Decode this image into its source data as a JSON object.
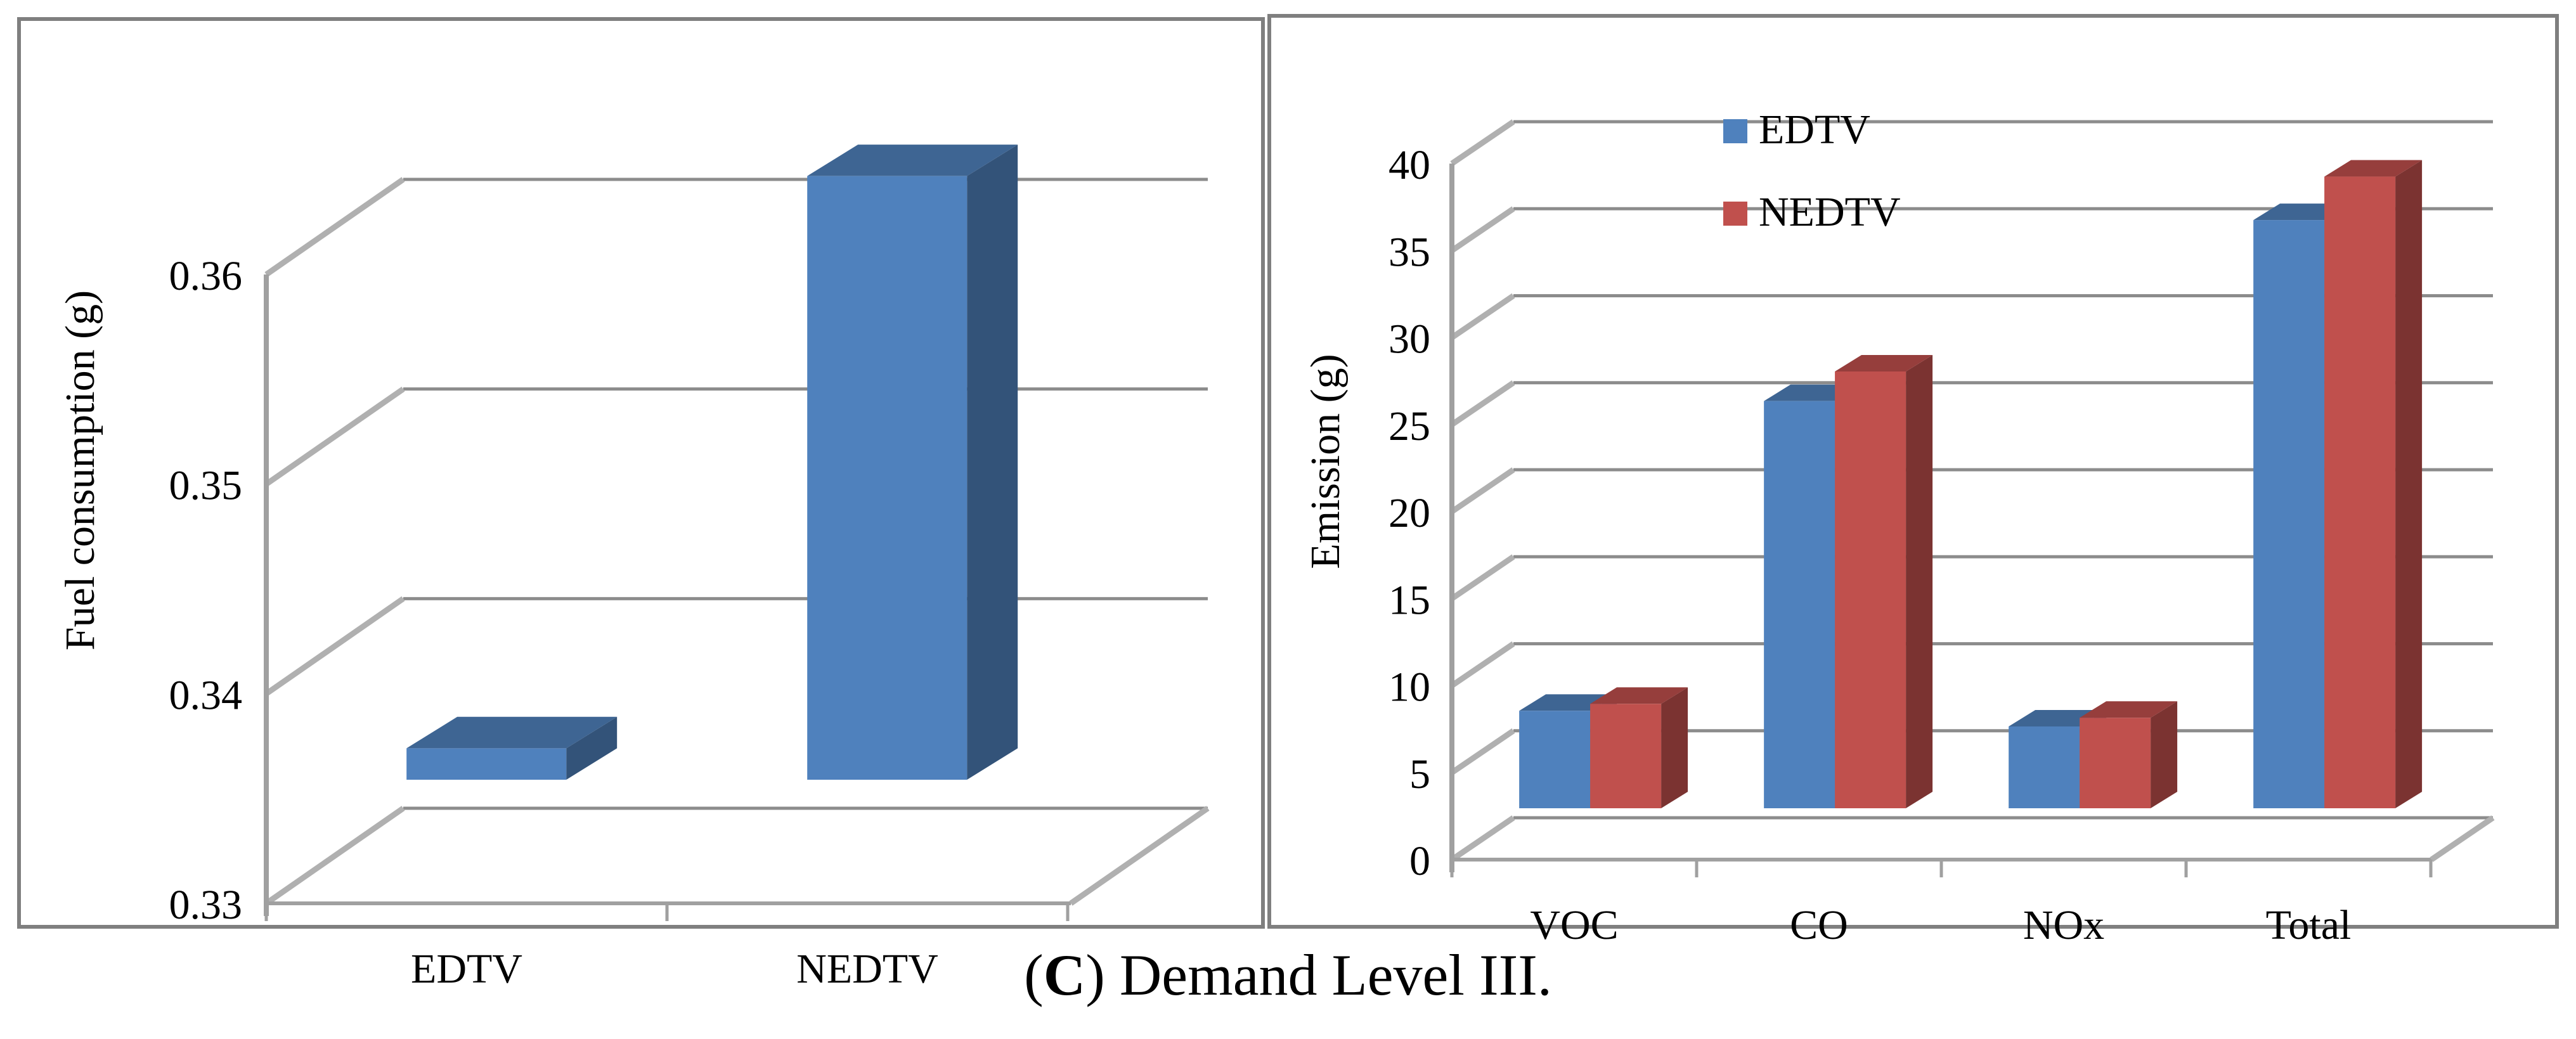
{
  "caption": {
    "letter": "C",
    "text": "Demand Level III."
  },
  "colors": {
    "edtv": "#4F81BD",
    "nedtv": "#C0504D",
    "grid": "#8c8c8c",
    "panel_border": "#7f7f7f"
  },
  "chart_data": [
    {
      "type": "bar",
      "title": "",
      "xlabel": "",
      "ylabel": "Fuel consumption (g)",
      "ylim": [
        0.33,
        0.36
      ],
      "yticks": [
        0.33,
        0.34,
        0.35,
        0.36
      ],
      "ytick_labels": [
        "0.33",
        "0.34",
        "0.35",
        "0.36"
      ],
      "categories": [
        "EDTV",
        "NEDTV"
      ],
      "values": [
        0.3315,
        0.3588
      ],
      "legend": null
    },
    {
      "type": "bar",
      "title": "",
      "xlabel": "",
      "ylabel": "Emission (g)",
      "ylim": [
        0,
        40
      ],
      "yticks": [
        0,
        5,
        10,
        15,
        20,
        25,
        30,
        35,
        40
      ],
      "ytick_labels": [
        "0",
        "5",
        "10",
        "15",
        "20",
        "25",
        "30",
        "35",
        "40"
      ],
      "categories": [
        "VOC",
        "CO",
        "NOx",
        "Total"
      ],
      "series": [
        {
          "name": "EDTV",
          "values": [
            5.6,
            23.4,
            4.7,
            33.8
          ]
        },
        {
          "name": "NEDTV",
          "values": [
            6.0,
            25.1,
            5.2,
            36.3
          ]
        }
      ],
      "legend": "top-left"
    }
  ]
}
